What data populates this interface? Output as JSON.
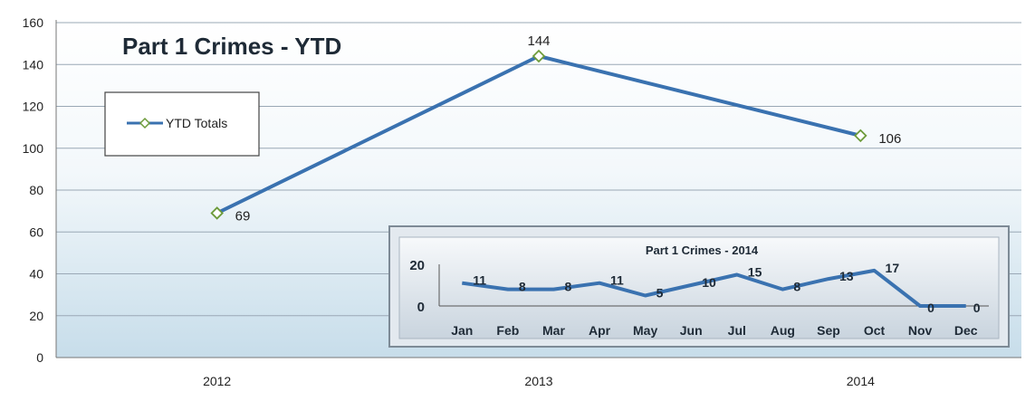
{
  "chart_data": [
    {
      "type": "line",
      "title": "Part 1 Crimes - YTD",
      "categories": [
        "2012",
        "2013",
        "2014"
      ],
      "series": [
        {
          "name": "YTD Totals",
          "values": [
            69,
            144,
            106
          ]
        }
      ],
      "ylim": [
        0,
        160
      ],
      "yticks": [
        "0",
        "20",
        "40",
        "60",
        "80",
        "100",
        "120",
        "140",
        "160"
      ],
      "grid": true,
      "legend": "top-left"
    },
    {
      "type": "line",
      "title": "Part 1 Crimes - 2014",
      "categories": [
        "Jan",
        "Feb",
        "Mar",
        "Apr",
        "May",
        "Jun",
        "Jul",
        "Aug",
        "Sep",
        "Oct",
        "Nov",
        "Dec"
      ],
      "series": [
        {
          "values": [
            11,
            8,
            8,
            11,
            5,
            10,
            15,
            8,
            13,
            17,
            0,
            0
          ]
        }
      ],
      "ylim": [
        0,
        20
      ],
      "yticks": [
        "0",
        "20"
      ],
      "grid": false,
      "legend": "none"
    }
  ],
  "colors": {
    "line": "#3a72b0",
    "marker_stroke": "#6d9b3a",
    "grid": "#9aa8b5",
    "inset_border": "#7d8a96"
  }
}
